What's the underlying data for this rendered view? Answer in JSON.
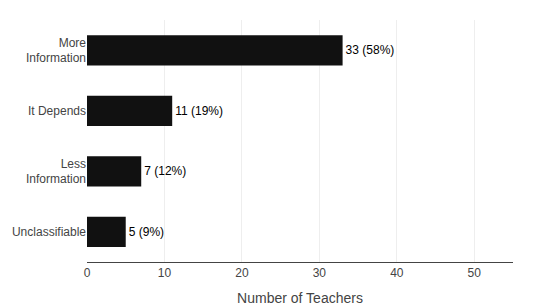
{
  "chart_data": {
    "type": "bar",
    "orientation": "horizontal",
    "categories": [
      "More\nInformation",
      "It Depends",
      "Less\nInformation",
      "Unclassifiable"
    ],
    "values": [
      33,
      11,
      7,
      5
    ],
    "value_labels": [
      "33 (58%)",
      "11 (19%)",
      "7 (12%)",
      "5 (9%)"
    ],
    "data_labels": true,
    "color": "#111111",
    "xlabel": "Number of Teachers",
    "xlim": [
      0,
      55
    ],
    "xticks": [
      0,
      10,
      20,
      30,
      40,
      50
    ],
    "grid": true
  }
}
